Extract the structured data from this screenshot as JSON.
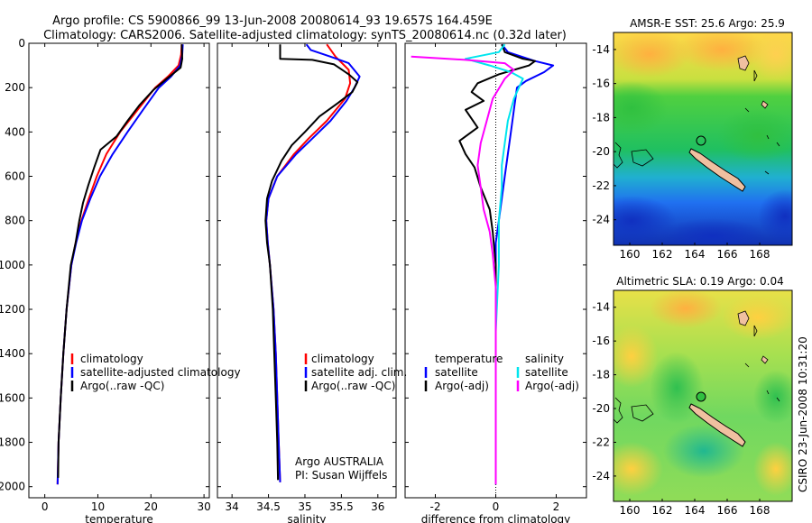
{
  "header": {
    "title_line1": "Argo profile: CS 5900866_99 13-Jun-2008 20080614_93 19.657S 164.459E",
    "title_line2": "Climatology: CARS2006. Satellite-adjusted climatology: synTS_20080614.nc (0.32d later)"
  },
  "footer": {
    "credit": "CSIRO 23-Jun-2008 10:31:20"
  },
  "colors": {
    "climatology": "#ff0000",
    "satellite": "#0000ff",
    "argo": "#000000",
    "satellite_diff": "#00e5ee",
    "argo_diff": "#ff00ff"
  },
  "chart_data": [
    {
      "id": "temperature",
      "type": "line",
      "xlabel": "temperature",
      "ylabel": "",
      "xlim": [
        -3,
        31
      ],
      "ylim": [
        2050,
        0
      ],
      "xticks": [
        0,
        10,
        20,
        30
      ],
      "yticks": [
        0,
        200,
        400,
        600,
        800,
        1000,
        1200,
        1400,
        1600,
        1800,
        2000
      ],
      "legend": [
        "climatology",
        "satellite-adjusted climatology",
        "Argo(..raw -QC)"
      ],
      "series": [
        {
          "name": "climatology",
          "color": "#ff0000",
          "points": [
            [
              25.8,
              5
            ],
            [
              25.7,
              50
            ],
            [
              25.2,
              100
            ],
            [
              23.2,
              150
            ],
            [
              20.8,
              200
            ],
            [
              17.5,
              300
            ],
            [
              14.2,
              400
            ],
            [
              11.6,
              500
            ],
            [
              9.8,
              600
            ],
            [
              8.3,
              700
            ],
            [
              6.9,
              800
            ],
            [
              5.8,
              900
            ],
            [
              5.0,
              1000
            ],
            [
              4.1,
              1200
            ],
            [
              3.5,
              1400
            ],
            [
              3.0,
              1600
            ],
            [
              2.6,
              1800
            ],
            [
              2.4,
              1990
            ]
          ]
        },
        {
          "name": "satellite-adjusted climatology",
          "color": "#0000ff",
          "points": [
            [
              26.0,
              5
            ],
            [
              25.9,
              50
            ],
            [
              25.5,
              100
            ],
            [
              23.8,
              150
            ],
            [
              21.5,
              200
            ],
            [
              18.5,
              300
            ],
            [
              15.6,
              400
            ],
            [
              12.8,
              500
            ],
            [
              10.4,
              600
            ],
            [
              8.6,
              700
            ],
            [
              7.0,
              800
            ],
            [
              5.9,
              900
            ],
            [
              5.0,
              1000
            ],
            [
              4.1,
              1200
            ],
            [
              3.5,
              1400
            ],
            [
              3.0,
              1600
            ],
            [
              2.6,
              1800
            ],
            [
              2.4,
              1990
            ]
          ]
        },
        {
          "name": "Argo(..raw -QC)",
          "color": "#000000",
          "points": [
            [
              25.8,
              5
            ],
            [
              25.9,
              70
            ],
            [
              25.6,
              110
            ],
            [
              23.0,
              160
            ],
            [
              20.5,
              210
            ],
            [
              17.8,
              280
            ],
            [
              15.6,
              350
            ],
            [
              13.5,
              420
            ],
            [
              10.5,
              480
            ],
            [
              9.3,
              560
            ],
            [
              8.2,
              640
            ],
            [
              7.2,
              720
            ],
            [
              6.5,
              800
            ],
            [
              5.8,
              900
            ],
            [
              4.9,
              1000
            ],
            [
              4.1,
              1200
            ],
            [
              3.5,
              1400
            ],
            [
              3.0,
              1600
            ],
            [
              2.6,
              1800
            ],
            [
              2.5,
              1960
            ]
          ]
        }
      ]
    },
    {
      "id": "salinity",
      "type": "line",
      "xlabel": "salinity",
      "ylabel": "",
      "xlim": [
        33.8,
        36.25
      ],
      "ylim": [
        2050,
        0
      ],
      "xticks": [
        34,
        34.5,
        35,
        35.5,
        36
      ],
      "legend": [
        "climatology",
        "satellite adj. clim.",
        "Argo(..raw -QC)"
      ],
      "annotations": [
        "Argo AUSTRALIA",
        "PI: Susan Wijffels"
      ],
      "series": [
        {
          "name": "climatology",
          "color": "#ff0000",
          "points": [
            [
              35.3,
              5
            ],
            [
              35.42,
              60
            ],
            [
              35.6,
              120
            ],
            [
              35.62,
              180
            ],
            [
              35.55,
              250
            ],
            [
              35.3,
              350
            ],
            [
              35.05,
              430
            ],
            [
              34.85,
              500
            ],
            [
              34.62,
              600
            ],
            [
              34.5,
              700
            ],
            [
              34.47,
              800
            ],
            [
              34.49,
              900
            ],
            [
              34.52,
              1000
            ],
            [
              34.57,
              1200
            ],
            [
              34.6,
              1400
            ],
            [
              34.62,
              1600
            ],
            [
              34.64,
              1800
            ],
            [
              34.66,
              1980
            ]
          ]
        },
        {
          "name": "satellite adj. clim.",
          "color": "#0000ff",
          "points": [
            [
              35.02,
              5
            ],
            [
              35.08,
              30
            ],
            [
              35.35,
              60
            ],
            [
              35.6,
              90
            ],
            [
              35.75,
              150
            ],
            [
              35.68,
              200
            ],
            [
              35.57,
              260
            ],
            [
              35.35,
              350
            ],
            [
              35.1,
              430
            ],
            [
              34.88,
              500
            ],
            [
              34.62,
              600
            ],
            [
              34.5,
              700
            ],
            [
              34.47,
              800
            ],
            [
              34.49,
              900
            ],
            [
              34.52,
              1000
            ],
            [
              34.57,
              1200
            ],
            [
              34.6,
              1400
            ],
            [
              34.62,
              1600
            ],
            [
              34.64,
              1800
            ],
            [
              34.66,
              1980
            ]
          ]
        },
        {
          "name": "Argo(..raw -QC)",
          "color": "#000000",
          "points": [
            [
              34.66,
              5
            ],
            [
              34.66,
              70
            ],
            [
              35.1,
              75
            ],
            [
              35.4,
              95
            ],
            [
              35.6,
              140
            ],
            [
              35.72,
              175
            ],
            [
              35.65,
              220
            ],
            [
              35.45,
              270
            ],
            [
              35.2,
              330
            ],
            [
              35.0,
              400
            ],
            [
              34.82,
              460
            ],
            [
              34.68,
              530
            ],
            [
              34.55,
              620
            ],
            [
              34.48,
              700
            ],
            [
              34.46,
              800
            ],
            [
              34.48,
              900
            ],
            [
              34.52,
              1000
            ],
            [
              34.56,
              1200
            ],
            [
              34.58,
              1400
            ],
            [
              34.6,
              1600
            ],
            [
              34.62,
              1800
            ],
            [
              34.63,
              1970
            ]
          ]
        }
      ]
    },
    {
      "id": "difference",
      "type": "line",
      "xlabel": "difference from climatology",
      "ylabel": "",
      "xlim": [
        -3,
        3
      ],
      "ylim": [
        2050,
        0
      ],
      "xticks": [
        -2,
        0,
        2
      ],
      "legend_titles": [
        "temperature",
        "salinity"
      ],
      "legend": [
        "satellite",
        "Argo(-adj)",
        "satellite",
        "Argo(-adj)"
      ],
      "series": [
        {
          "name": "temperature satellite",
          "color": "#0000ff",
          "points": [
            [
              0.2,
              5
            ],
            [
              0.4,
              40
            ],
            [
              1.3,
              80
            ],
            [
              1.9,
              100
            ],
            [
              1.6,
              130
            ],
            [
              1.0,
              170
            ],
            [
              0.7,
              200
            ],
            [
              0.6,
              300
            ],
            [
              0.5,
              400
            ],
            [
              0.4,
              500
            ],
            [
              0.3,
              600
            ],
            [
              0.2,
              700
            ],
            [
              0.1,
              800
            ],
            [
              0.0,
              900
            ],
            [
              0.0,
              1000
            ],
            [
              0.0,
              1300
            ],
            [
              0.0,
              1600
            ],
            [
              0.0,
              1990
            ]
          ]
        },
        {
          "name": "temperature Argo(-adj)",
          "color": "#000000",
          "points": [
            [
              0.2,
              5
            ],
            [
              0.3,
              40
            ],
            [
              0.9,
              70
            ],
            [
              1.3,
              80
            ],
            [
              1.1,
              100
            ],
            [
              0.6,
              120
            ],
            [
              0.1,
              140
            ],
            [
              -0.6,
              180
            ],
            [
              -0.8,
              220
            ],
            [
              -0.4,
              260
            ],
            [
              -1.0,
              300
            ],
            [
              -0.6,
              380
            ],
            [
              -1.2,
              440
            ],
            [
              -1.0,
              500
            ],
            [
              -0.7,
              560
            ],
            [
              -0.5,
              650
            ],
            [
              -0.2,
              750
            ],
            [
              -0.1,
              850
            ],
            [
              0.0,
              1000
            ],
            [
              0.0,
              1300
            ],
            [
              0.0,
              1600
            ],
            [
              0.0,
              1990
            ]
          ]
        },
        {
          "name": "salinity satellite",
          "color": "#00e5ee",
          "points": [
            [
              0.3,
              5
            ],
            [
              0.1,
              40
            ],
            [
              -1.0,
              70
            ],
            [
              -0.2,
              100
            ],
            [
              0.5,
              130
            ],
            [
              0.9,
              160
            ],
            [
              0.6,
              250
            ],
            [
              0.4,
              350
            ],
            [
              0.3,
              450
            ],
            [
              0.2,
              550
            ],
            [
              0.2,
              650
            ],
            [
              0.1,
              800
            ],
            [
              0.1,
              1000
            ],
            [
              0.0,
              1300
            ],
            [
              0.0,
              1600
            ],
            [
              0.0,
              1990
            ]
          ]
        },
        {
          "name": "salinity Argo(-adj)",
          "color": "#ff00ff",
          "points": [
            [
              -2.8,
              60
            ],
            [
              -1.0,
              75
            ],
            [
              0.3,
              90
            ],
            [
              0.6,
              120
            ],
            [
              0.3,
              160
            ],
            [
              -0.1,
              250
            ],
            [
              -0.3,
              350
            ],
            [
              -0.5,
              450
            ],
            [
              -0.6,
              550
            ],
            [
              -0.5,
              650
            ],
            [
              -0.4,
              750
            ],
            [
              -0.2,
              850
            ],
            [
              -0.1,
              950
            ],
            [
              0.0,
              1100
            ],
            [
              0.0,
              1400
            ],
            [
              0.0,
              1700
            ],
            [
              0.0,
              1990
            ]
          ]
        }
      ]
    },
    {
      "id": "sst-map",
      "type": "heatmap",
      "title": "AMSR-E SST: 25.6 Argo: 25.9",
      "xlim": [
        159,
        170
      ],
      "ylim": [
        -25.5,
        -13
      ],
      "xticks": [
        160,
        162,
        164,
        166,
        168
      ],
      "yticks": [
        -14,
        -16,
        -18,
        -20,
        -22,
        -24
      ],
      "argo_position": [
        164.459,
        -19.657
      ]
    },
    {
      "id": "sla-map",
      "type": "heatmap",
      "title": "Altimetric SLA: 0.19 Argo: 0.04",
      "xlim": [
        159,
        170
      ],
      "ylim": [
        -25.5,
        -13
      ],
      "xticks": [
        160,
        162,
        164,
        166,
        168
      ],
      "yticks": [
        -14,
        -16,
        -18,
        -20,
        -22,
        -24
      ],
      "argo_position": [
        164.459,
        -19.657
      ]
    }
  ]
}
